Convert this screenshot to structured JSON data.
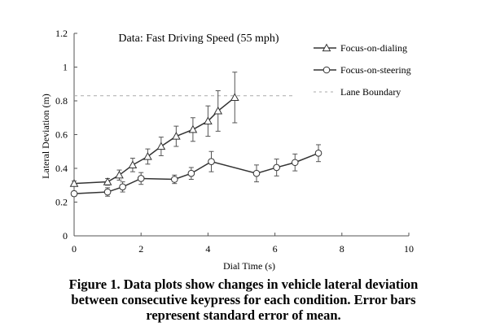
{
  "chart_data": {
    "type": "line",
    "title": "Data: Fast Driving Speed (55 mph)",
    "xlabel": "Dial Time (s)",
    "ylabel": "Lateral Deviation (m)",
    "xlim": [
      0,
      10
    ],
    "ylim": [
      0,
      1.2
    ],
    "x_ticks": [
      0,
      2,
      4,
      6,
      8,
      10
    ],
    "x_tick_labels": [
      "0",
      "2",
      "4",
      "6",
      "8",
      "10"
    ],
    "y_ticks": [
      0,
      0.2,
      0.4,
      0.6,
      0.8,
      1,
      1.2
    ],
    "y_tick_labels": [
      "0",
      "0.2",
      "0.4",
      "0.6",
      "0.8",
      "1",
      "1.2"
    ],
    "grid": false,
    "legend_position": "top-right",
    "series": [
      {
        "name": "Focus-on-dialing",
        "marker": "triangle",
        "color": "#333333",
        "points": [
          {
            "x": 0,
            "y": 0.31,
            "err": 0.015
          },
          {
            "x": 1.0,
            "y": 0.32,
            "err": 0.02
          },
          {
            "x": 1.35,
            "y": 0.36,
            "err": 0.03
          },
          {
            "x": 1.75,
            "y": 0.42,
            "err": 0.04
          },
          {
            "x": 2.2,
            "y": 0.47,
            "err": 0.045
          },
          {
            "x": 2.6,
            "y": 0.53,
            "err": 0.055
          },
          {
            "x": 3.05,
            "y": 0.59,
            "err": 0.06
          },
          {
            "x": 3.55,
            "y": 0.63,
            "err": 0.07
          },
          {
            "x": 4.0,
            "y": 0.68,
            "err": 0.09
          },
          {
            "x": 4.3,
            "y": 0.74,
            "err": 0.12
          },
          {
            "x": 4.8,
            "y": 0.82,
            "err": 0.15
          }
        ]
      },
      {
        "name": "Focus-on-steering",
        "marker": "circle",
        "color": "#333333",
        "points": [
          {
            "x": 0,
            "y": 0.25,
            "err": 0.015
          },
          {
            "x": 1.0,
            "y": 0.26,
            "err": 0.025
          },
          {
            "x": 1.45,
            "y": 0.29,
            "err": 0.03
          },
          {
            "x": 2.0,
            "y": 0.34,
            "err": 0.035
          },
          {
            "x": 3.0,
            "y": 0.335,
            "err": 0.025
          },
          {
            "x": 3.5,
            "y": 0.37,
            "err": 0.035
          },
          {
            "x": 4.1,
            "y": 0.44,
            "err": 0.06
          },
          {
            "x": 5.45,
            "y": 0.37,
            "err": 0.05
          },
          {
            "x": 6.05,
            "y": 0.405,
            "err": 0.05
          },
          {
            "x": 6.6,
            "y": 0.435,
            "err": 0.05
          },
          {
            "x": 7.3,
            "y": 0.49,
            "err": 0.05
          }
        ]
      }
    ],
    "reference_line": {
      "name": "Lane Boundary",
      "y": 0.83,
      "x_range": [
        0,
        6.6
      ],
      "style": "dashed",
      "color": "#aaaaaa"
    }
  },
  "caption": {
    "line1": "Figure 1. Data plots show changes in vehicle lateral deviation",
    "line2": "between consecutive keypress for each condition. Error bars",
    "line3": "represent standard error of mean."
  }
}
